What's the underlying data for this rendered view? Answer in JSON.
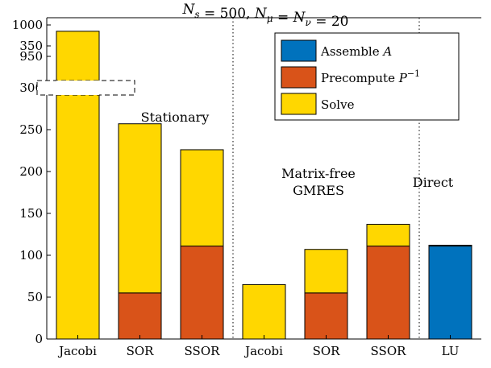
{
  "chart_data": {
    "type": "bar",
    "stacked": true,
    "title": "N_s = 500, N_μ = N_ν = 20",
    "title_parts": [
      {
        "t": "N",
        "sub": "s"
      },
      {
        "t": " = 500, "
      },
      {
        "t": "N",
        "sub": "μ"
      },
      {
        "t": " = "
      },
      {
        "t": "N",
        "sub": "ν"
      },
      {
        "t": " = 20"
      }
    ],
    "xlabel": "",
    "ylabel": "",
    "categories": [
      "Jacobi",
      "SOR",
      "SSOR",
      "Jacobi",
      "SOR",
      "SSOR",
      "LU"
    ],
    "groups": [
      {
        "name": "Stationary",
        "label_lines": [
          "Stationary"
        ],
        "categories": [
          0,
          1,
          2
        ]
      },
      {
        "name": "Matrix-free GMRES",
        "label_lines": [
          "Matrix-free",
          "GMRES"
        ],
        "categories": [
          3,
          4,
          5
        ]
      },
      {
        "name": "Direct",
        "label_lines": [
          "Direct"
        ],
        "categories": [
          6
        ]
      }
    ],
    "series": [
      {
        "name": "Assemble A",
        "name_main": "Assemble ",
        "name_math": "A",
        "name_sup": "",
        "color": "#0072BD",
        "values": [
          0,
          0,
          0,
          0,
          0,
          0,
          111
        ]
      },
      {
        "name": "Precompute P^-1",
        "name_main": "Precompute ",
        "name_math": "P",
        "name_sup": "−1",
        "color": "#D95319",
        "values": [
          0,
          55,
          111,
          0,
          55,
          111,
          0
        ]
      },
      {
        "name": "Solve",
        "name_main": "Solve",
        "name_math": "",
        "name_sup": "",
        "color": "#FFD700",
        "values": [
          990,
          202,
          115,
          65,
          52,
          26,
          1
        ]
      }
    ],
    "y_axis": {
      "broken": true,
      "lower_range": [
        0,
        400
      ],
      "upper_range": [
        900,
        1000
      ],
      "ticks": [
        0,
        50,
        100,
        150,
        200,
        250,
        300,
        350,
        950,
        1000
      ]
    },
    "grid": false,
    "legend": {
      "position": "top-right"
    }
  }
}
